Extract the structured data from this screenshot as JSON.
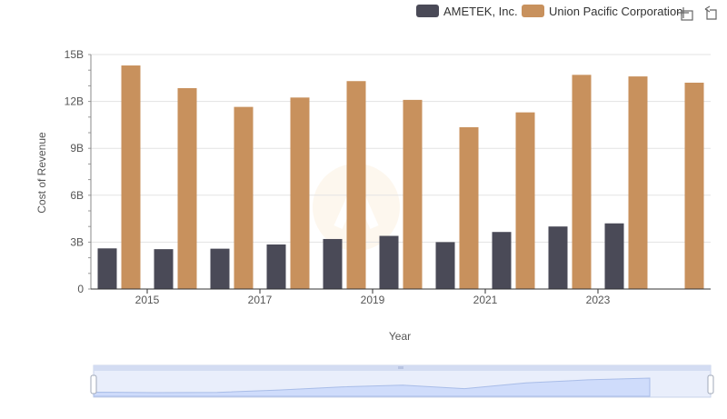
{
  "toolbar": {
    "icons": [
      "zoom-icon",
      "restore-icon"
    ]
  },
  "chart_data": {
    "type": "bar",
    "xlabel": "Year",
    "ylabel": "Cost of Revenue",
    "ylim": [
      0,
      15000000000
    ],
    "yticks": [
      "0",
      "3B",
      "6B",
      "9B",
      "12B",
      "15B"
    ],
    "xtick_labels": [
      "2015",
      "2017",
      "2019",
      "2021",
      "2023"
    ],
    "legend_position": "top-right",
    "grid": true,
    "categories": [
      2014,
      2015,
      2016,
      2017,
      2018,
      2019,
      2020,
      2021,
      2022,
      2023,
      2024
    ],
    "series": [
      {
        "name": "AMETEK, Inc.",
        "color": "#4a4a57",
        "values": [
          2600000000,
          2550000000,
          2580000000,
          2850000000,
          3200000000,
          3400000000,
          3000000000,
          3650000000,
          4000000000,
          4200000000,
          null
        ]
      },
      {
        "name": "Union Pacific Corporation",
        "color": "#c8915d",
        "values": [
          14300000000,
          12850000000,
          11650000000,
          12250000000,
          13300000000,
          12100000000,
          10350000000,
          11300000000,
          13700000000,
          13600000000,
          13200000000
        ]
      }
    ]
  }
}
